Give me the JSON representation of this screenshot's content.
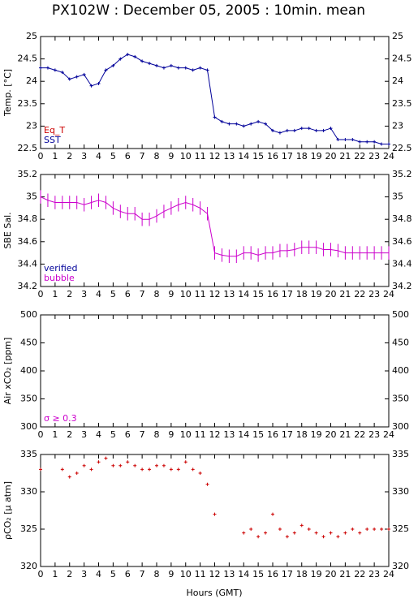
{
  "chart_data": [
    {
      "type": "line",
      "title": "PX102W : December 05, 2005 : 10min. mean",
      "ylabel": "Temp. [°C]",
      "xlim": [
        0,
        24
      ],
      "xticks": [
        0,
        1,
        2,
        3,
        4,
        5,
        6,
        7,
        8,
        9,
        10,
        11,
        12,
        13,
        14,
        15,
        16,
        17,
        18,
        19,
        20,
        21,
        22,
        23,
        24
      ],
      "ylim": [
        22.5,
        25
      ],
      "yticks": [
        22.5,
        23,
        23.5,
        24,
        24.5,
        25
      ],
      "legend": [
        {
          "label": "Eq_T",
          "color": "#cc0000"
        },
        {
          "label": "SST",
          "color": "#000099"
        }
      ],
      "x": [
        0,
        0.5,
        1,
        1.5,
        2,
        2.5,
        3,
        3.5,
        4,
        4.5,
        5,
        5.5,
        6,
        6.5,
        7,
        7.5,
        8,
        8.5,
        9,
        9.5,
        10,
        10.5,
        11,
        11.5,
        12,
        12.5,
        13,
        13.5,
        14,
        14.5,
        15,
        15.5,
        16,
        16.5,
        17,
        17.5,
        18,
        18.5,
        19,
        19.5,
        20,
        20.5,
        21,
        21.5,
        22,
        22.5,
        23,
        23.5,
        24
      ],
      "series": [
        {
          "name": "SST",
          "color": "#000099",
          "values": [
            24.3,
            24.3,
            24.25,
            24.2,
            24.05,
            24.1,
            24.15,
            23.9,
            23.95,
            24.25,
            24.35,
            24.5,
            24.6,
            24.55,
            24.45,
            24.4,
            24.35,
            24.3,
            24.35,
            24.3,
            24.3,
            24.25,
            24.3,
            24.25,
            23.2,
            23.1,
            23.05,
            23.05,
            23.0,
            23.05,
            23.1,
            23.05,
            22.9,
            22.85,
            22.9,
            22.9,
            22.95,
            22.95,
            22.9,
            22.9,
            22.95,
            22.7,
            22.7,
            22.7,
            22.65,
            22.65,
            22.65,
            22.6,
            22.6
          ]
        }
      ]
    },
    {
      "type": "errorbar",
      "ylabel": "SBE Sal.",
      "xlim": [
        0,
        24
      ],
      "xticks": [
        0,
        1,
        2,
        3,
        4,
        5,
        6,
        7,
        8,
        9,
        10,
        11,
        12,
        13,
        14,
        15,
        16,
        17,
        18,
        19,
        20,
        21,
        22,
        23,
        24
      ],
      "ylim": [
        34.2,
        35.2
      ],
      "yticks": [
        34.2,
        34.4,
        34.6,
        34.8,
        35,
        35.2
      ],
      "legend": [
        {
          "label": "verified",
          "color": "#000099"
        },
        {
          "label": "bubble",
          "color": "#cc00cc"
        }
      ],
      "x": [
        0,
        0.5,
        1,
        1.5,
        2,
        2.5,
        3,
        3.5,
        4,
        4.5,
        5,
        5.5,
        6,
        6.5,
        7,
        7.5,
        8,
        8.5,
        9,
        9.5,
        10,
        10.5,
        11,
        11.5,
        12,
        12.5,
        13,
        13.5,
        14,
        14.5,
        15,
        15.5,
        16,
        16.5,
        17,
        17.5,
        18,
        18.5,
        19,
        19.5,
        20,
        20.5,
        21,
        21.5,
        22,
        22.5,
        23,
        23.5,
        24
      ],
      "series": [
        {
          "name": "bubble",
          "color": "#cc00cc",
          "values": [
            35.0,
            34.97,
            34.95,
            34.95,
            34.95,
            34.95,
            34.93,
            34.95,
            34.97,
            34.95,
            34.9,
            34.87,
            34.85,
            34.85,
            34.8,
            34.8,
            34.83,
            34.87,
            34.9,
            34.93,
            34.95,
            34.93,
            34.9,
            34.85,
            34.5,
            34.48,
            34.47,
            34.47,
            34.5,
            34.5,
            34.48,
            34.5,
            34.5,
            34.52,
            34.52,
            34.53,
            34.55,
            34.55,
            34.55,
            34.53,
            34.53,
            34.52,
            34.5,
            34.5,
            34.5,
            34.5,
            34.5,
            34.5,
            34.5
          ],
          "errors": [
            0.06,
            0.06,
            0.06,
            0.06,
            0.06,
            0.06,
            0.06,
            0.06,
            0.06,
            0.06,
            0.06,
            0.06,
            0.06,
            0.06,
            0.06,
            0.06,
            0.06,
            0.06,
            0.06,
            0.06,
            0.06,
            0.06,
            0.06,
            0.06,
            0.06,
            0.06,
            0.06,
            0.06,
            0.06,
            0.06,
            0.06,
            0.06,
            0.06,
            0.06,
            0.06,
            0.06,
            0.06,
            0.06,
            0.06,
            0.06,
            0.06,
            0.06,
            0.06,
            0.06,
            0.06,
            0.06,
            0.06,
            0.06,
            0.06
          ]
        }
      ]
    },
    {
      "type": "scatter",
      "ylabel": "Air xCO₂ [ppm]",
      "xlim": [
        0,
        24
      ],
      "xticks": [
        0,
        1,
        2,
        3,
        4,
        5,
        6,
        7,
        8,
        9,
        10,
        11,
        12,
        13,
        14,
        15,
        16,
        17,
        18,
        19,
        20,
        21,
        22,
        23,
        24
      ],
      "ylim": [
        300,
        500
      ],
      "yticks": [
        300,
        350,
        400,
        450,
        500
      ],
      "legend": [
        {
          "label": "σ ≥ 0.3",
          "color": "#cc00cc"
        }
      ],
      "x": [],
      "series": []
    },
    {
      "type": "scatter",
      "ylabel": "ρCO₂ [μ atm]",
      "xlabel": "Hours (GMT)",
      "xlim": [
        0,
        24
      ],
      "xticks": [
        0,
        1,
        2,
        3,
        4,
        5,
        6,
        7,
        8,
        9,
        10,
        11,
        12,
        13,
        14,
        15,
        16,
        17,
        18,
        19,
        20,
        21,
        22,
        23,
        24
      ],
      "ylim": [
        320,
        335
      ],
      "yticks": [
        320,
        325,
        330,
        335
      ],
      "legend": [],
      "x": [
        0,
        0.5,
        1,
        1.5,
        2,
        2.5,
        3,
        3.5,
        4,
        4.5,
        5,
        5.5,
        6,
        6.5,
        7,
        7.5,
        8,
        8.5,
        9,
        9.5,
        10,
        10.5,
        11,
        11.5,
        12,
        12.5,
        13,
        13.5,
        14,
        14.5,
        15,
        15.5,
        16,
        16.5,
        17,
        17.5,
        18,
        18.5,
        19,
        19.5,
        20,
        20.5,
        21,
        21.5,
        22,
        22.5,
        23,
        23.5,
        24
      ],
      "series": [
        {
          "name": "pCO2",
          "color": "#cc0000",
          "values": [
            333,
            null,
            null,
            333,
            332,
            332.5,
            333.5,
            333,
            334,
            334.5,
            333.5,
            333.5,
            334,
            333.5,
            333,
            333,
            333.5,
            333.5,
            333,
            333,
            334,
            333,
            332.5,
            331,
            327,
            null,
            null,
            null,
            324.5,
            325,
            324,
            324.5,
            327,
            325,
            324,
            324.5,
            325.5,
            325,
            324.5,
            324,
            324.5,
            324,
            324.5,
            325,
            324.5,
            325,
            325,
            325,
            325
          ]
        }
      ]
    }
  ]
}
